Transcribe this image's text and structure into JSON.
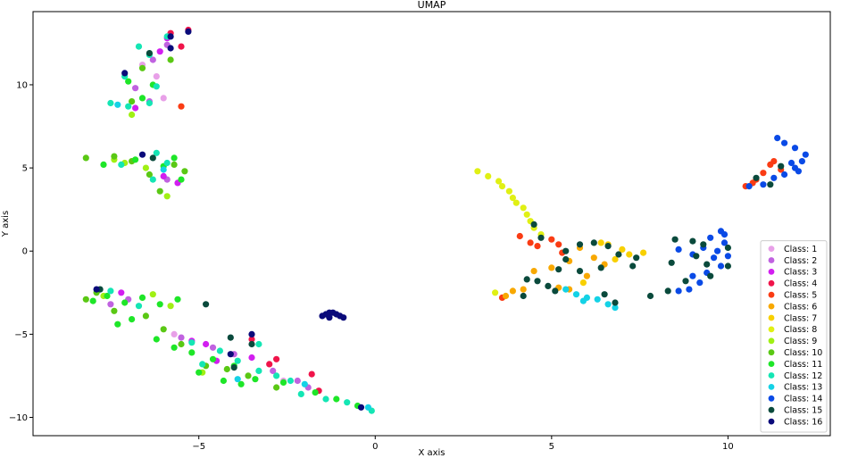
{
  "chart_data": {
    "type": "scatter",
    "title": "UMAP",
    "xlabel": "X axis",
    "ylabel": "Y axis",
    "xlim": [
      -9.7,
      12.9
    ],
    "ylim": [
      -11.1,
      14.4
    ],
    "xticks": [
      -5,
      0,
      5,
      10
    ],
    "xtick_labels": [
      "−5",
      "0",
      "5",
      "10"
    ],
    "yticks": [
      -10,
      -5,
      0,
      5,
      10
    ],
    "ytick_labels": [
      "−10",
      "−5",
      "0",
      "5",
      "10"
    ],
    "grid": false,
    "legend_position": "bottom-right",
    "series": [
      {
        "name": "Class: 1",
        "color": "#e8a0e8",
        "points": [
          [
            -6.2,
            10.5
          ],
          [
            -6.6,
            11.2
          ],
          [
            -6.0,
            9.2
          ],
          [
            -2.6,
            -7.8
          ],
          [
            -5.7,
            -5.0
          ]
        ]
      },
      {
        "name": "Class: 2",
        "color": "#c062e0",
        "points": [
          [
            -6.3,
            11.5
          ],
          [
            -5.9,
            12.4
          ],
          [
            -6.4,
            9.0
          ],
          [
            -6.8,
            9.8
          ],
          [
            -5.9,
            4.3
          ],
          [
            -7.5,
            -3.2
          ],
          [
            -5.5,
            -5.2
          ],
          [
            -4.6,
            -5.8
          ],
          [
            -4.0,
            -6.2
          ],
          [
            -2.2,
            -7.8
          ],
          [
            -1.9,
            -8.2
          ],
          [
            -2.9,
            -7.2
          ],
          [
            -7.0,
            -2.9
          ]
        ]
      },
      {
        "name": "Class: 3",
        "color": "#d21ef0",
        "points": [
          [
            -5.9,
            12.8
          ],
          [
            -6.1,
            12.0
          ],
          [
            -6.8,
            8.6
          ],
          [
            -5.6,
            4.1
          ],
          [
            -6.0,
            4.5
          ],
          [
            -7.2,
            -2.5
          ],
          [
            -4.8,
            -5.6
          ],
          [
            -4.5,
            -6.6
          ],
          [
            -3.5,
            -6.4
          ],
          [
            -5.2,
            -5.4
          ]
        ]
      },
      {
        "name": "Class: 4",
        "color": "#f0144a",
        "points": [
          [
            -5.3,
            13.3
          ],
          [
            -5.5,
            12.3
          ],
          [
            -5.8,
            13.1
          ],
          [
            -3.5,
            -5.3
          ],
          [
            -2.8,
            -6.5
          ],
          [
            -3.0,
            -6.8
          ],
          [
            -1.8,
            -7.4
          ],
          [
            -1.6,
            -8.4
          ]
        ]
      },
      {
        "name": "Class: 5",
        "color": "#fa3c14",
        "points": [
          [
            -5.5,
            8.7
          ],
          [
            3.6,
            -2.8
          ],
          [
            4.1,
            0.9
          ],
          [
            4.4,
            0.5
          ],
          [
            4.6,
            0.3
          ],
          [
            5.2,
            0.4
          ],
          [
            5.3,
            -0.1
          ],
          [
            10.5,
            3.9
          ],
          [
            10.8,
            4.3
          ],
          [
            11.0,
            4.7
          ],
          [
            11.2,
            5.2
          ],
          [
            11.3,
            5.4
          ],
          [
            11.5,
            4.9
          ],
          [
            10.7,
            4.1
          ],
          [
            5.0,
            0.7
          ]
        ]
      },
      {
        "name": "Class: 6",
        "color": "#f8a800",
        "points": [
          [
            3.7,
            -2.7
          ],
          [
            4.5,
            -1.2
          ],
          [
            5.0,
            -1.0
          ],
          [
            5.5,
            -0.6
          ],
          [
            5.8,
            0.2
          ],
          [
            6.2,
            -0.4
          ],
          [
            6.0,
            -1.5
          ],
          [
            5.5,
            -2.3
          ],
          [
            5.2,
            -2.2
          ],
          [
            6.5,
            -0.8
          ],
          [
            4.2,
            -2.3
          ],
          [
            3.9,
            -2.4
          ]
        ]
      },
      {
        "name": "Class: 7",
        "color": "#f8d000",
        "points": [
          [
            6.6,
            0.4
          ],
          [
            7.0,
            0.1
          ],
          [
            7.2,
            -0.2
          ],
          [
            6.8,
            -0.5
          ],
          [
            7.6,
            -0.1
          ],
          [
            6.4,
            0.5
          ],
          [
            5.9,
            -1.9
          ]
        ]
      },
      {
        "name": "Class: 8",
        "color": "#e0f014",
        "points": [
          [
            2.9,
            4.8
          ],
          [
            3.2,
            4.5
          ],
          [
            3.5,
            4.2
          ],
          [
            3.6,
            3.9
          ],
          [
            3.8,
            3.6
          ],
          [
            3.9,
            3.2
          ],
          [
            4.0,
            2.9
          ],
          [
            4.2,
            2.6
          ],
          [
            4.3,
            2.2
          ],
          [
            4.4,
            1.8
          ],
          [
            4.5,
            1.4
          ],
          [
            4.7,
            1.0
          ],
          [
            3.4,
            -2.5
          ]
        ]
      },
      {
        "name": "Class: 9",
        "color": "#a0f014",
        "points": [
          [
            -7.4,
            5.5
          ],
          [
            -7.1,
            5.3
          ],
          [
            -6.5,
            5.0
          ],
          [
            -5.9,
            3.3
          ],
          [
            -6.9,
            8.2
          ],
          [
            -7.7,
            -2.7
          ],
          [
            -6.3,
            -2.6
          ],
          [
            -5.8,
            -3.3
          ],
          [
            -4.9,
            -7.3
          ]
        ]
      },
      {
        "name": "Class: 10",
        "color": "#5ac814",
        "points": [
          [
            -8.2,
            5.6
          ],
          [
            -7.4,
            5.7
          ],
          [
            -6.9,
            5.4
          ],
          [
            -6.4,
            4.6
          ],
          [
            -5.7,
            5.2
          ],
          [
            -5.4,
            4.8
          ],
          [
            -6.1,
            3.6
          ],
          [
            -8.2,
            -2.9
          ],
          [
            -7.9,
            -2.5
          ],
          [
            -7.4,
            -3.6
          ],
          [
            -6.5,
            -3.9
          ],
          [
            -6.0,
            -4.7
          ],
          [
            -5.5,
            -5.6
          ],
          [
            -4.8,
            -6.9
          ],
          [
            -4.2,
            -7.1
          ],
          [
            -3.6,
            -7.5
          ],
          [
            -2.8,
            -8.2
          ],
          [
            -6.9,
            9.0
          ],
          [
            -6.6,
            11.0
          ],
          [
            -5.8,
            11.5
          ]
        ]
      },
      {
        "name": "Class: 11",
        "color": "#1ee628",
        "points": [
          [
            -7.0,
            10.2
          ],
          [
            -6.3,
            10.0
          ],
          [
            -6.6,
            9.2
          ],
          [
            -7.7,
            5.2
          ],
          [
            -6.8,
            5.5
          ],
          [
            -6.0,
            5.1
          ],
          [
            -5.7,
            5.6
          ],
          [
            -5.5,
            4.3
          ],
          [
            -8.0,
            -3.0
          ],
          [
            -7.6,
            -2.7
          ],
          [
            -7.1,
            -3.1
          ],
          [
            -6.6,
            -2.8
          ],
          [
            -6.1,
            -3.2
          ],
          [
            -5.6,
            -2.9
          ],
          [
            -6.9,
            -4.1
          ],
          [
            -7.3,
            -4.4
          ],
          [
            -6.2,
            -5.3
          ],
          [
            -5.7,
            -5.8
          ],
          [
            -5.2,
            -6.1
          ],
          [
            -4.6,
            -6.5
          ],
          [
            -4.0,
            -6.9
          ],
          [
            -3.4,
            -7.7
          ],
          [
            -2.6,
            -7.9
          ],
          [
            -1.7,
            -8.5
          ],
          [
            -1.1,
            -8.9
          ],
          [
            -0.5,
            -9.3
          ],
          [
            -5.0,
            -7.3
          ],
          [
            -4.3,
            -7.8
          ],
          [
            -3.8,
            -8.0
          ]
        ]
      },
      {
        "name": "Class: 12",
        "color": "#14e6b4",
        "points": [
          [
            -7.5,
            8.9
          ],
          [
            -7.0,
            8.7
          ],
          [
            -6.4,
            8.9
          ],
          [
            -6.2,
            9.9
          ],
          [
            -6.4,
            11.8
          ],
          [
            -5.9,
            12.9
          ],
          [
            -6.7,
            12.3
          ],
          [
            -7.1,
            10.5
          ],
          [
            -6.2,
            5.9
          ],
          [
            -5.9,
            5.3
          ],
          [
            -6.3,
            4.3
          ],
          [
            -7.2,
            5.2
          ],
          [
            -6.7,
            -3.3
          ],
          [
            -7.5,
            -2.4
          ],
          [
            -5.2,
            -5.5
          ],
          [
            -4.4,
            -6.0
          ],
          [
            -3.9,
            -6.6
          ],
          [
            -3.3,
            -7.2
          ],
          [
            -2.4,
            -7.8
          ],
          [
            -2.1,
            -8.6
          ],
          [
            -1.4,
            -8.9
          ],
          [
            -0.8,
            -9.1
          ],
          [
            -0.1,
            -9.6
          ],
          [
            -3.3,
            -5.6
          ],
          [
            -4.9,
            -6.8
          ],
          [
            -2.8,
            -7.5
          ]
        ]
      },
      {
        "name": "Class: 13",
        "color": "#14d2e6",
        "points": [
          [
            5.4,
            -2.3
          ],
          [
            6.0,
            -2.8
          ],
          [
            6.3,
            -2.9
          ],
          [
            6.6,
            -3.2
          ],
          [
            6.8,
            -3.4
          ],
          [
            5.7,
            -2.6
          ],
          [
            -3.9,
            -7.7
          ],
          [
            -2.0,
            -8.0
          ],
          [
            -7.3,
            8.8
          ],
          [
            -6.0,
            4.9
          ],
          [
            -0.2,
            -9.4
          ],
          [
            5.9,
            -3.0
          ]
        ]
      },
      {
        "name": "Class: 14",
        "color": "#0a4ae6",
        "points": [
          [
            10.6,
            3.9
          ],
          [
            11.0,
            4.0
          ],
          [
            11.3,
            4.4
          ],
          [
            11.6,
            4.6
          ],
          [
            11.9,
            5.0
          ],
          [
            12.1,
            5.4
          ],
          [
            12.2,
            5.8
          ],
          [
            11.9,
            6.2
          ],
          [
            11.6,
            6.5
          ],
          [
            11.4,
            6.8
          ],
          [
            12.0,
            4.8
          ],
          [
            11.8,
            5.3
          ],
          [
            9.0,
            -0.2
          ],
          [
            9.3,
            0.2
          ],
          [
            9.5,
            0.8
          ],
          [
            9.8,
            1.2
          ],
          [
            9.9,
            0.5
          ],
          [
            9.6,
            -0.4
          ],
          [
            9.8,
            -0.9
          ],
          [
            9.4,
            -1.3
          ],
          [
            9.2,
            -1.9
          ],
          [
            8.9,
            -2.3
          ],
          [
            8.6,
            -2.4
          ],
          [
            9.0,
            -1.5
          ],
          [
            10.0,
            -0.3
          ],
          [
            8.6,
            0.1
          ],
          [
            9.9,
            1.0
          ],
          [
            9.7,
            0.0
          ]
        ]
      },
      {
        "name": "Class: 15",
        "color": "#0a4a3c",
        "points": [
          [
            4.5,
            1.6
          ],
          [
            4.7,
            0.8
          ],
          [
            5.4,
            0.0
          ],
          [
            5.8,
            0.4
          ],
          [
            6.2,
            0.5
          ],
          [
            6.6,
            0.3
          ],
          [
            6.9,
            -0.2
          ],
          [
            6.4,
            -1.0
          ],
          [
            5.8,
            -1.2
          ],
          [
            5.4,
            -0.5
          ],
          [
            5.2,
            -1.1
          ],
          [
            4.6,
            -1.8
          ],
          [
            4.3,
            -1.7
          ],
          [
            4.9,
            -2.1
          ],
          [
            5.1,
            -2.4
          ],
          [
            6.5,
            -2.6
          ],
          [
            6.8,
            -3.1
          ],
          [
            4.2,
            -2.7
          ],
          [
            7.3,
            -0.9
          ],
          [
            7.8,
            -2.7
          ],
          [
            8.3,
            -2.4
          ],
          [
            8.8,
            -1.8
          ],
          [
            9.1,
            -0.3
          ],
          [
            9.4,
            -0.8
          ],
          [
            9.0,
            0.6
          ],
          [
            8.5,
            0.7
          ],
          [
            9.5,
            -1.5
          ],
          [
            10.0,
            0.2
          ],
          [
            10.0,
            -0.9
          ],
          [
            8.4,
            -0.7
          ],
          [
            9.3,
            0.4
          ],
          [
            11.5,
            5.1
          ],
          [
            10.8,
            4.4
          ],
          [
            11.2,
            4.0
          ],
          [
            7.4,
            -0.4
          ],
          [
            -4.8,
            -3.2
          ],
          [
            -4.1,
            -5.2
          ],
          [
            -3.5,
            -5.6
          ],
          [
            -4.0,
            -7.0
          ],
          [
            -7.8,
            -2.3
          ],
          [
            -6.4,
            11.9
          ],
          [
            -6.3,
            5.6
          ]
        ]
      },
      {
        "name": "Class: 16",
        "color": "#0a0a7a",
        "points": [
          [
            -5.3,
            13.2
          ],
          [
            -5.8,
            12.9
          ],
          [
            -5.8,
            12.2
          ],
          [
            -7.1,
            10.7
          ],
          [
            -6.6,
            5.8
          ],
          [
            -1.4,
            -3.8
          ],
          [
            -1.2,
            -3.7
          ],
          [
            -1.0,
            -3.9
          ],
          [
            -0.9,
            -4.0
          ],
          [
            -1.3,
            -4.0
          ],
          [
            -1.1,
            -3.8
          ],
          [
            -1.5,
            -3.9
          ],
          [
            -3.5,
            -5.0
          ],
          [
            -0.4,
            -9.4
          ],
          [
            -7.9,
            -2.3
          ],
          [
            -4.1,
            -6.2
          ],
          [
            -1.3,
            -3.7
          ]
        ]
      }
    ]
  }
}
